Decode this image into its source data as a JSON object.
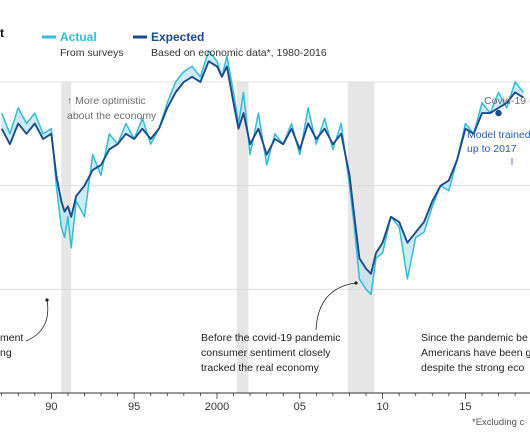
{
  "legend": {
    "title_fragment": "t",
    "actual": {
      "label": "Actual",
      "sub": "From surveys",
      "color": "#33bcd6"
    },
    "expected": {
      "label": "Expected",
      "sub": "Based on economic data*, 1980-2016",
      "color": "#1a4b8e"
    }
  },
  "annotations": {
    "optimistic": [
      "↑ More optimistic",
      "about the economy"
    ],
    "covid_tag": "Covid-19 (",
    "model": [
      "Model trained",
      "up to 2017"
    ],
    "left_fragment": [
      "ment",
      "ng"
    ],
    "before_covid": [
      "Before the covid-19 pandemic",
      "consumer sentiment closely",
      "tracked the real economy"
    ],
    "since_covid": [
      "Since the pandemic be",
      "Americans have been g",
      "despite the strong eco"
    ]
  },
  "footnote": "*Excluding c",
  "colors": {
    "recession": "#e6e6e6",
    "grid": "#d9d9d9",
    "axis": "#333333",
    "fill": "#b8e3ee",
    "text": "#333333",
    "annotation": "#6e6e6e",
    "model_text": "#2a5ea8"
  },
  "chart_data": {
    "type": "line",
    "xlabel": "",
    "ylabel": "",
    "xlim": [
      1986.9,
      2018.9
    ],
    "ylim": [
      0,
      3
    ],
    "x_ticks": [
      1990,
      1995,
      2000,
      2005,
      2010,
      2015
    ],
    "x_tick_labels": [
      "90",
      "95",
      "2000",
      "05",
      "10",
      "15"
    ],
    "grid": "horizontal",
    "recession_bands": [
      [
        1990.6,
        1991.2
      ],
      [
        2001.2,
        2001.9
      ],
      [
        2007.9,
        2009.5
      ]
    ],
    "model_marker": {
      "x": 2017.0,
      "y": 2.7
    },
    "series": [
      {
        "name": "Actual",
        "color": "#33bcd6",
        "x": [
          1987.0,
          1987.5,
          1988.0,
          1988.5,
          1989.0,
          1989.5,
          1990.0,
          1990.3,
          1990.6,
          1990.8,
          1991.0,
          1991.2,
          1991.5,
          1992.0,
          1992.5,
          1993.0,
          1993.5,
          1994.0,
          1994.5,
          1995.0,
          1995.5,
          1996.0,
          1996.5,
          1997.0,
          1997.5,
          1998.0,
          1998.5,
          1999.0,
          1999.5,
          2000.0,
          2000.3,
          2000.6,
          2001.0,
          2001.3,
          2001.6,
          2002.0,
          2002.5,
          2003.0,
          2003.5,
          2004.0,
          2004.5,
          2005.0,
          2005.5,
          2006.0,
          2006.5,
          2007.0,
          2007.5,
          2008.0,
          2008.3,
          2008.6,
          2009.0,
          2009.3,
          2009.6,
          2010.0,
          2010.5,
          2011.0,
          2011.5,
          2012.0,
          2012.5,
          2013.0,
          2013.5,
          2014.0,
          2014.5,
          2015.0,
          2015.5,
          2016.0,
          2016.5,
          2017.0,
          2017.5,
          2018.0,
          2018.5
        ],
        "y": [
          2.7,
          2.5,
          2.75,
          2.6,
          2.7,
          2.5,
          2.55,
          2.0,
          1.6,
          1.5,
          1.7,
          1.4,
          1.85,
          1.7,
          2.3,
          2.1,
          2.5,
          2.4,
          2.6,
          2.45,
          2.65,
          2.4,
          2.55,
          2.8,
          3.0,
          3.1,
          3.15,
          3.05,
          3.3,
          3.2,
          3.05,
          3.25,
          2.9,
          2.6,
          2.9,
          2.3,
          2.7,
          2.2,
          2.5,
          2.4,
          2.6,
          2.3,
          2.75,
          2.4,
          2.65,
          2.35,
          2.6,
          2.0,
          1.6,
          1.1,
          1.0,
          0.95,
          1.3,
          1.35,
          1.7,
          1.6,
          1.1,
          1.5,
          1.55,
          1.8,
          2.0,
          1.95,
          2.25,
          2.6,
          2.5,
          2.8,
          2.7,
          2.9,
          2.75,
          3.0,
          2.9
        ]
      },
      {
        "name": "Expected",
        "color": "#1a4b8e",
        "x": [
          1987.0,
          1987.5,
          1988.0,
          1988.5,
          1989.0,
          1989.5,
          1990.0,
          1990.3,
          1990.6,
          1990.8,
          1991.0,
          1991.2,
          1991.5,
          1992.0,
          1992.5,
          1993.0,
          1993.5,
          1994.0,
          1994.5,
          1995.0,
          1995.5,
          1996.0,
          1996.5,
          1997.0,
          1997.5,
          1998.0,
          1998.5,
          1999.0,
          1999.5,
          2000.0,
          2000.3,
          2000.6,
          2001.0,
          2001.3,
          2001.6,
          2002.0,
          2002.5,
          2003.0,
          2003.5,
          2004.0,
          2004.5,
          2005.0,
          2005.5,
          2006.0,
          2006.5,
          2007.0,
          2007.5,
          2008.0,
          2008.3,
          2008.6,
          2009.0,
          2009.3,
          2009.6,
          2010.0,
          2010.5,
          2011.0,
          2011.5,
          2012.0,
          2012.5,
          2013.0,
          2013.5,
          2014.0,
          2014.5,
          2015.0,
          2015.5,
          2016.0,
          2016.5,
          2017.0,
          2017.5,
          2018.0,
          2018.5
        ],
        "y": [
          2.55,
          2.4,
          2.6,
          2.5,
          2.6,
          2.45,
          2.5,
          2.1,
          1.85,
          1.75,
          1.8,
          1.7,
          1.9,
          2.0,
          2.15,
          2.2,
          2.35,
          2.4,
          2.5,
          2.45,
          2.55,
          2.45,
          2.55,
          2.75,
          2.9,
          3.0,
          3.05,
          3.0,
          3.2,
          3.15,
          3.05,
          3.15,
          2.8,
          2.55,
          2.7,
          2.4,
          2.55,
          2.3,
          2.45,
          2.4,
          2.55,
          2.35,
          2.6,
          2.45,
          2.55,
          2.4,
          2.5,
          2.1,
          1.7,
          1.3,
          1.2,
          1.15,
          1.35,
          1.45,
          1.7,
          1.65,
          1.45,
          1.55,
          1.65,
          1.85,
          2.0,
          2.05,
          2.25,
          2.55,
          2.5,
          2.7,
          2.7,
          2.75,
          2.8,
          2.9,
          2.85
        ]
      }
    ]
  }
}
